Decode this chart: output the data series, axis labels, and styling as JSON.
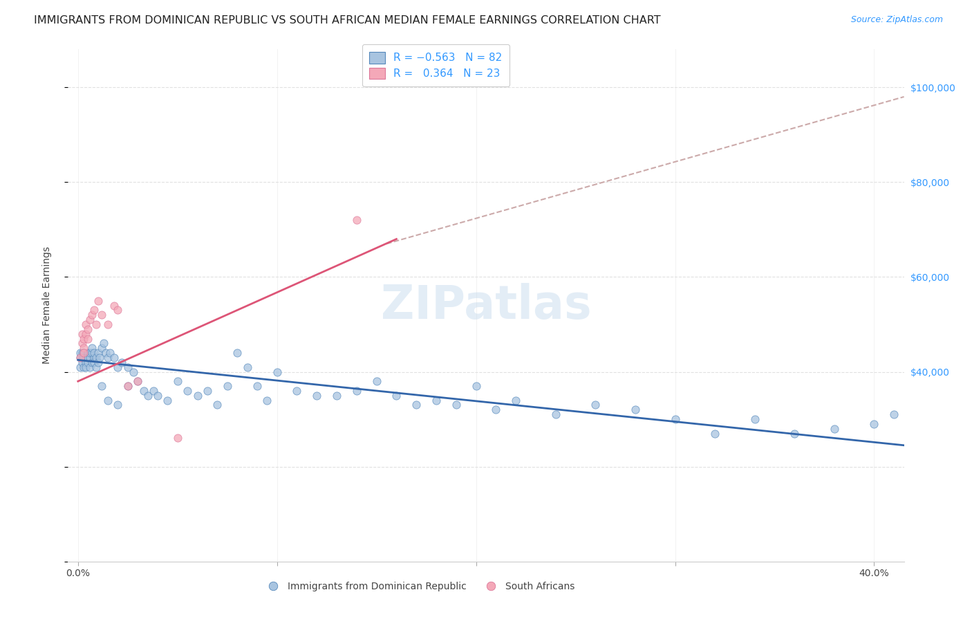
{
  "title": "IMMIGRANTS FROM DOMINICAN REPUBLIC VS SOUTH AFRICAN MEDIAN FEMALE EARNINGS CORRELATION CHART",
  "source": "Source: ZipAtlas.com",
  "ylabel": "Median Female Earnings",
  "xlim": [
    -0.005,
    0.415
  ],
  "ylim": [
    0,
    108000
  ],
  "blue_color": "#A8C4E0",
  "pink_color": "#F4A8B8",
  "blue_edge_color": "#5588BB",
  "pink_edge_color": "#DD7799",
  "blue_line_color": "#3366AA",
  "pink_line_color": "#DD5577",
  "dashed_line_color": "#CCAAAA",
  "background_color": "#FFFFFF",
  "grid_color": "#E0E0E0",
  "title_color": "#222222",
  "right_axis_color": "#3399FF",
  "watermark_text": "ZIPatlas",
  "watermark_color": "#C8DCEE",
  "blue_scatter_x": [
    0.001,
    0.001,
    0.001,
    0.002,
    0.002,
    0.002,
    0.003,
    0.003,
    0.003,
    0.004,
    0.004,
    0.004,
    0.005,
    0.005,
    0.005,
    0.006,
    0.006,
    0.006,
    0.007,
    0.007,
    0.007,
    0.008,
    0.008,
    0.008,
    0.009,
    0.009,
    0.01,
    0.01,
    0.011,
    0.012,
    0.013,
    0.014,
    0.015,
    0.016,
    0.018,
    0.02,
    0.022,
    0.025,
    0.028,
    0.03,
    0.033,
    0.035,
    0.038,
    0.04,
    0.045,
    0.05,
    0.055,
    0.06,
    0.065,
    0.07,
    0.075,
    0.08,
    0.085,
    0.09,
    0.095,
    0.1,
    0.11,
    0.12,
    0.13,
    0.14,
    0.15,
    0.16,
    0.17,
    0.18,
    0.19,
    0.2,
    0.21,
    0.22,
    0.24,
    0.26,
    0.28,
    0.3,
    0.32,
    0.34,
    0.36,
    0.38,
    0.4,
    0.41,
    0.012,
    0.015,
    0.02,
    0.025
  ],
  "blue_scatter_y": [
    43000,
    41000,
    44000,
    42000,
    44000,
    43000,
    41000,
    43000,
    44000,
    42000,
    43000,
    41000,
    42000,
    44000,
    43000,
    43000,
    41000,
    44000,
    44000,
    42000,
    45000,
    43000,
    44000,
    42000,
    41000,
    43000,
    42000,
    44000,
    43000,
    45000,
    46000,
    44000,
    43000,
    44000,
    43000,
    41000,
    42000,
    41000,
    40000,
    38000,
    36000,
    35000,
    36000,
    35000,
    34000,
    38000,
    36000,
    35000,
    36000,
    33000,
    37000,
    44000,
    41000,
    37000,
    34000,
    40000,
    36000,
    35000,
    35000,
    36000,
    38000,
    35000,
    33000,
    34000,
    33000,
    37000,
    32000,
    34000,
    31000,
    33000,
    32000,
    30000,
    27000,
    30000,
    27000,
    28000,
    29000,
    31000,
    37000,
    34000,
    33000,
    37000
  ],
  "pink_scatter_x": [
    0.001,
    0.002,
    0.002,
    0.003,
    0.003,
    0.003,
    0.004,
    0.004,
    0.005,
    0.005,
    0.006,
    0.007,
    0.008,
    0.009,
    0.01,
    0.012,
    0.015,
    0.018,
    0.02,
    0.025,
    0.03,
    0.05,
    0.14
  ],
  "pink_scatter_y": [
    43000,
    46000,
    48000,
    45000,
    47000,
    44000,
    48000,
    50000,
    49000,
    47000,
    51000,
    52000,
    53000,
    50000,
    55000,
    52000,
    50000,
    54000,
    53000,
    37000,
    38000,
    26000,
    72000
  ],
  "blue_line_x0": 0.0,
  "blue_line_x1": 0.415,
  "blue_line_y0": 42500,
  "blue_line_y1": 24500,
  "pink_line_x0": 0.0,
  "pink_line_x1": 0.16,
  "pink_line_y0": 38000,
  "pink_line_y1": 68000,
  "dashed_line_x0": 0.155,
  "dashed_line_x1": 0.415,
  "dashed_line_y0": 67000,
  "dashed_line_y1": 98000,
  "legend_label1": "R = −0.563   N = 82",
  "legend_label2": "R =   0.364   N = 23",
  "bottom_label1": "Immigrants from Dominican Republic",
  "bottom_label2": "South Africans",
  "title_fontsize": 11.5,
  "source_fontsize": 9,
  "ylabel_fontsize": 10,
  "tick_fontsize": 10,
  "legend_fontsize": 11,
  "watermark_fontsize": 48
}
